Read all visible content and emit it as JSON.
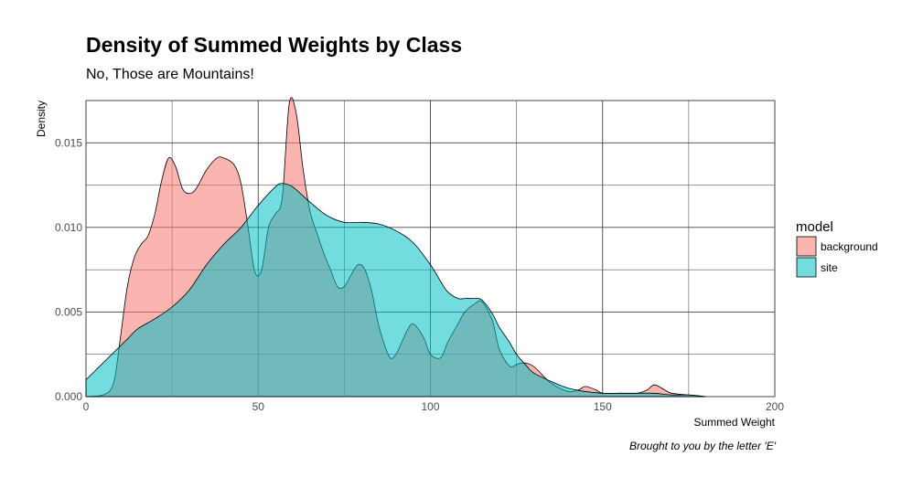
{
  "chart_data": {
    "type": "area",
    "title": "Density of Summed Weights by Class",
    "subtitle": "No, Those are Mountains!",
    "caption": "Brought to you by the letter 'E'",
    "xlabel": "Summed Weight",
    "ylabel": "Density",
    "xlim": [
      0,
      200
    ],
    "ylim": [
      0,
      0.0175
    ],
    "x_ticks": [
      0,
      50,
      100,
      150,
      200
    ],
    "x_tick_labels": [
      "0",
      "50",
      "100",
      "150",
      "200"
    ],
    "y_ticks": [
      0,
      0.005,
      0.01,
      0.015
    ],
    "y_tick_labels": [
      "0.000",
      "0.005",
      "0.010",
      "0.015"
    ],
    "grid": true,
    "legend": {
      "title": "model",
      "position": "right"
    },
    "series": [
      {
        "name": "background",
        "color": "#F8766D",
        "x": [
          0,
          5,
          8,
          10,
          12,
          14,
          16,
          18,
          20,
          22,
          24,
          26,
          28,
          30,
          32,
          35,
          38,
          40,
          43,
          45,
          47,
          49,
          51,
          53,
          55,
          57,
          59,
          61,
          63,
          65,
          67,
          69,
          71,
          73,
          75,
          77,
          79,
          81,
          83,
          85,
          88,
          90,
          93,
          95,
          98,
          100,
          103,
          105,
          108,
          110,
          113,
          115,
          118,
          120,
          123,
          125,
          127,
          129,
          131,
          135,
          140,
          143,
          145,
          148,
          150,
          155,
          160,
          163,
          165,
          168,
          170,
          175,
          180
        ],
        "y": [
          0,
          0.0001,
          0.0008,
          0.0035,
          0.0065,
          0.0082,
          0.009,
          0.0095,
          0.0108,
          0.0128,
          0.0141,
          0.0136,
          0.0123,
          0.012,
          0.0123,
          0.0134,
          0.0141,
          0.0141,
          0.0137,
          0.0126,
          0.0101,
          0.0074,
          0.0075,
          0.01,
          0.0108,
          0.0118,
          0.0173,
          0.0168,
          0.0135,
          0.011,
          0.0097,
          0.0085,
          0.0075,
          0.0065,
          0.0065,
          0.0072,
          0.0078,
          0.0075,
          0.0062,
          0.0042,
          0.0024,
          0.0025,
          0.0038,
          0.0043,
          0.0035,
          0.0025,
          0.0023,
          0.0032,
          0.0043,
          0.005,
          0.0055,
          0.0056,
          0.0045,
          0.0028,
          0.0018,
          0.0019,
          0.002,
          0.0019,
          0.0016,
          0.0008,
          0.0003,
          0.0004,
          0.0006,
          0.0004,
          0.0002,
          0.0002,
          0.0002,
          0.0004,
          0.0007,
          0.0004,
          0.0002,
          0.0001,
          0
        ]
      },
      {
        "name": "site",
        "color": "#00BFC4",
        "x": [
          0,
          3,
          6,
          9,
          12,
          15,
          20,
          25,
          30,
          35,
          40,
          45,
          50,
          55,
          57,
          60,
          65,
          70,
          75,
          80,
          85,
          90,
          95,
          100,
          103,
          105,
          108,
          110,
          113,
          115,
          118,
          120,
          123,
          125,
          128,
          130,
          135,
          140,
          145,
          150,
          155,
          160,
          165,
          170,
          175,
          180
        ],
        "y": [
          0.001,
          0.0016,
          0.0022,
          0.0028,
          0.0034,
          0.004,
          0.0046,
          0.0053,
          0.0063,
          0.0078,
          0.009,
          0.01,
          0.0113,
          0.0124,
          0.0126,
          0.0124,
          0.0115,
          0.0107,
          0.0103,
          0.0103,
          0.0102,
          0.0098,
          0.0091,
          0.0078,
          0.0068,
          0.0062,
          0.0058,
          0.0058,
          0.0058,
          0.0057,
          0.0049,
          0.0041,
          0.0032,
          0.0025,
          0.0018,
          0.0014,
          0.0009,
          0.0005,
          0.0003,
          0.0002,
          0.0002,
          0.0002,
          0.0002,
          0.0001,
          0.0001,
          0
        ]
      }
    ]
  }
}
